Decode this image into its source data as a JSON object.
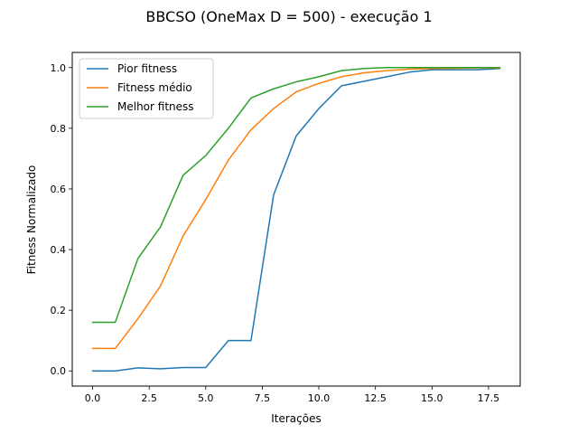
{
  "chart_data": {
    "type": "line",
    "title": "BBCSO (OneMax D = 500) - execução 1",
    "xlabel": "Iterações",
    "ylabel": "Fitness Normalizado",
    "xlim": [
      -0.9,
      18.9
    ],
    "ylim": [
      -0.05,
      1.05
    ],
    "xticks": [
      0.0,
      2.5,
      5.0,
      7.5,
      10.0,
      12.5,
      15.0,
      17.5
    ],
    "xtick_labels": [
      "0.0",
      "2.5",
      "5.0",
      "7.5",
      "10.0",
      "12.5",
      "15.0",
      "17.5"
    ],
    "yticks": [
      0.0,
      0.2,
      0.4,
      0.6,
      0.8,
      1.0
    ],
    "ytick_labels": [
      "0.0",
      "0.2",
      "0.4",
      "0.6",
      "0.8",
      "1.0"
    ],
    "grid": false,
    "legend_position": "top-left",
    "x": [
      0,
      1,
      2,
      3,
      4,
      5,
      6,
      7,
      8,
      9,
      10,
      11,
      12,
      13,
      14,
      15,
      16,
      17,
      18
    ],
    "series": [
      {
        "name": "Pior fitness",
        "color": "#1f77b4",
        "values": [
          0.0,
          0.0,
          0.01,
          0.007,
          0.011,
          0.011,
          0.1,
          0.1,
          0.58,
          0.775,
          0.865,
          0.94,
          0.955,
          0.97,
          0.985,
          0.993,
          0.993,
          0.993,
          0.997
        ]
      },
      {
        "name": "Fitness médio",
        "color": "#ff7f0e",
        "values": [
          0.074,
          0.074,
          0.172,
          0.28,
          0.445,
          0.565,
          0.695,
          0.795,
          0.865,
          0.92,
          0.948,
          0.97,
          0.983,
          0.99,
          0.995,
          0.997,
          0.998,
          0.999,
          0.999
        ]
      },
      {
        "name": "Melhor fitness",
        "color": "#2ca02c",
        "values": [
          0.16,
          0.16,
          0.37,
          0.475,
          0.645,
          0.71,
          0.8,
          0.9,
          0.93,
          0.953,
          0.97,
          0.99,
          0.997,
          1.0,
          1.0,
          1.0,
          1.0,
          1.0,
          1.0
        ]
      }
    ]
  }
}
